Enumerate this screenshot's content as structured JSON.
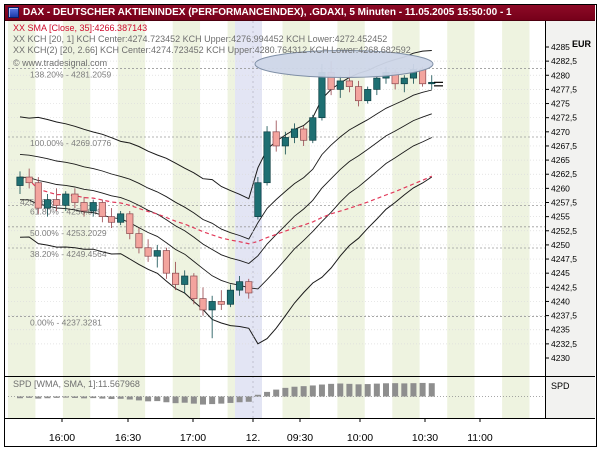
{
  "window": {
    "title": "DAX - DEUTSCHER AKTIENINDEX (PERFORMANCEINDEX), .GDAXI, 5 Minuten - 11.05.2005 15:50:00 - 1"
  },
  "overlays": {
    "sma_label": "XX SMA [Close, 35]:4266.387143",
    "kch1_label": "XX KCH [20, 1] KCH Center:4274.723452 KCH Upper:4276.994452 KCH Lower:4272.452452",
    "kch2_label": "XX KCH(2) [20, 2.66] KCH Center:4274.723452 KCH Upper:4280.764312 KCH Lower:4268.682592",
    "copyright": "© www.tradesignal.com",
    "spd_label": "SPD [WMA, SMA, 1]:11.567968"
  },
  "axis": {
    "currency": "EUR",
    "spd": "SPD",
    "price_ticks": [
      "4285",
      "4282,5",
      "4280",
      "4277,5",
      "4275",
      "4272,5",
      "4270",
      "4267,5",
      "4265",
      "4262,5",
      "4260",
      "4257,5",
      "4255",
      "4252,5",
      "4250",
      "4247,5",
      "4245",
      "4242,5",
      "4240",
      "4237,5",
      "4235",
      "4232,5",
      "4230"
    ],
    "time_ticks": [
      "16:00",
      "16:30",
      "17:00",
      "12.",
      "09:30",
      "10:00",
      "10:30",
      "11:00"
    ]
  },
  "fib_levels": [
    {
      "label": "138.20% - 4281.2059",
      "price": 4281.2059,
      "x": 30,
      "line": true
    },
    {
      "label": "100.00% - 4269.0776",
      "price": 4269.0776,
      "x": 30,
      "line": true
    },
    {
      "label": "4258.6088",
      "price": 4258.6088,
      "x": 20,
      "line": false
    },
    {
      "label": "61.80% - 4256.9494",
      "price": 4256.9494,
      "x": 30,
      "line": true
    },
    {
      "label": "50.00% - 4253.2029",
      "price": 4253.2029,
      "x": 30,
      "line": true
    },
    {
      "label": "38.20% - 4249.4564",
      "price": 4249.4564,
      "x": 30,
      "line": true
    },
    {
      "label": "0.00% - 4237.3281",
      "price": 4237.3281,
      "x": 30,
      "line": true
    }
  ],
  "colors": {
    "titlebar": "#7d0021",
    "up_candle": "#1e6f72",
    "down_candle": "#f3a49e",
    "sma_line": "#e23a5a",
    "channel_line": "#1a1a1a",
    "stripe_green": "#eef3e0",
    "stripe_lavender": "#e3e5f4",
    "spd_bar": "#8e8e8e",
    "axis_bg": "#f2f2f0"
  },
  "chart_data": {
    "type": "candlestick",
    "title": "DAX - DEUTSCHER AKTIENINDEX (PERFORMANCEINDEX)",
    "symbol": ".GDAXI",
    "interval": "5 Minuten",
    "currency": "EUR",
    "price_axis_range": [
      4230,
      4285
    ],
    "price_tick_step": 2.5,
    "time_labels": [
      "16:00",
      "16:30",
      "17:00",
      "12.",
      "09:30",
      "10:00",
      "10:30",
      "11:00"
    ],
    "session_break_index": 26,
    "last_close": 4278.75,
    "indicators": {
      "sma": {
        "source": "Close",
        "period": 35,
        "value": 4266.387143
      },
      "kch1": {
        "period": 20,
        "factor": 1,
        "center": 4274.723452,
        "upper": 4276.994452,
        "lower": 4272.452452
      },
      "kch2": {
        "period": 20,
        "factor": 2.66,
        "center": 4274.723452,
        "upper": 4280.764312,
        "lower": 4268.682592
      },
      "spd": {
        "params": "WMA, SMA, 1",
        "value": 11.567968
      }
    },
    "fibonacci": [
      {
        "pct": "138.20%",
        "price": 4281.2059
      },
      {
        "pct": "100.00%",
        "price": 4269.0776
      },
      {
        "pct": "61.80%",
        "price": 4256.9494
      },
      {
        "pct": "50.00%",
        "price": 4253.2029
      },
      {
        "pct": "38.20%",
        "price": 4249.4564
      },
      {
        "pct": "0.00%",
        "price": 4237.3281
      }
    ],
    "ohlc_format": [
      "open",
      "high",
      "low",
      "close"
    ],
    "candles": [
      [
        4260.5,
        4263,
        4259,
        4262
      ],
      [
        4262,
        4263.5,
        4260,
        4261
      ],
      [
        4261,
        4262,
        4255.5,
        4256.5
      ],
      [
        4256.5,
        4259,
        4255,
        4258
      ],
      [
        4258,
        4260,
        4256,
        4257
      ],
      [
        4257,
        4259.5,
        4256,
        4259
      ],
      [
        4259,
        4260,
        4256.5,
        4257.5
      ],
      [
        4257.5,
        4258.5,
        4255,
        4256
      ],
      [
        4256,
        4258,
        4255,
        4257.5
      ],
      [
        4257.5,
        4258,
        4254,
        4255
      ],
      [
        4255,
        4256.5,
        4253,
        4254
      ],
      [
        4254,
        4256,
        4253.5,
        4255.5
      ],
      [
        4255.5,
        4256,
        4251,
        4252
      ],
      [
        4252,
        4253,
        4248.5,
        4249.5
      ],
      [
        4249.5,
        4251,
        4247,
        4248
      ],
      [
        4248,
        4250,
        4246,
        4249
      ],
      [
        4249,
        4249.5,
        4244,
        4245
      ],
      [
        4245,
        4247,
        4242,
        4243
      ],
      [
        4243,
        4245.5,
        4241.5,
        4244.5
      ],
      [
        4244.5,
        4245,
        4239.5,
        4240.5
      ],
      [
        4240.5,
        4242.5,
        4237.5,
        4238.5
      ],
      [
        4238.5,
        4241,
        4233.5,
        4240
      ],
      [
        4240,
        4242,
        4238.5,
        4239.5
      ],
      [
        4239.5,
        4243,
        4239,
        4242
      ],
      [
        4242,
        4244.5,
        4241,
        4243.5
      ],
      [
        4243.5,
        4244,
        4240.5,
        4241.5
      ],
      [
        4255,
        4262,
        4254.5,
        4261
      ],
      [
        4261,
        4271,
        4260.5,
        4270
      ],
      [
        4270,
        4272,
        4266.5,
        4267.5
      ],
      [
        4267.5,
        4270,
        4266,
        4269
      ],
      [
        4269,
        4271.5,
        4268,
        4270.5
      ],
      [
        4270.5,
        4271,
        4267.5,
        4268.5
      ],
      [
        4268.5,
        4273,
        4268,
        4272.5
      ],
      [
        4272.5,
        4282,
        4272,
        4280.5
      ],
      [
        4280.5,
        4282.5,
        4276.5,
        4277.5
      ],
      [
        4277.5,
        4280,
        4276,
        4279
      ],
      [
        4279,
        4281,
        4277,
        4278
      ],
      [
        4278,
        4279,
        4274.5,
        4275.5
      ],
      [
        4275.5,
        4278,
        4275,
        4277.5
      ],
      [
        4277.5,
        4280,
        4276.5,
        4279.5
      ],
      [
        4279.5,
        4281.5,
        4278.5,
        4280.5
      ],
      [
        4280.5,
        4281,
        4277.5,
        4278.5
      ],
      [
        4278.5,
        4280,
        4277,
        4279.5
      ],
      [
        4279.5,
        4282,
        4278.5,
        4281
      ],
      [
        4281,
        4281.5,
        4278,
        4278.5
      ],
      [
        4278.5,
        4280,
        4277.5,
        4278.75
      ]
    ],
    "spd_values": [
      -1.5,
      -1.2,
      -1.8,
      -1.5,
      -1.2,
      -1,
      -1.3,
      -1.6,
      -1.4,
      -1.8,
      -2.2,
      -2,
      -2.6,
      -3.4,
      -4.2,
      -4,
      -5,
      -5.8,
      -5.4,
      -6.2,
      -7,
      -6.6,
      -6.2,
      -5.6,
      -5,
      -4.6,
      1.5,
      4,
      6,
      7.5,
      8.5,
      9,
      9.6,
      10.4,
      11,
      11.3,
      11,
      10.6,
      10.8,
      11.2,
      11.5,
      11.6,
      11.4,
      11.6,
      11.8,
      11.57
    ]
  }
}
